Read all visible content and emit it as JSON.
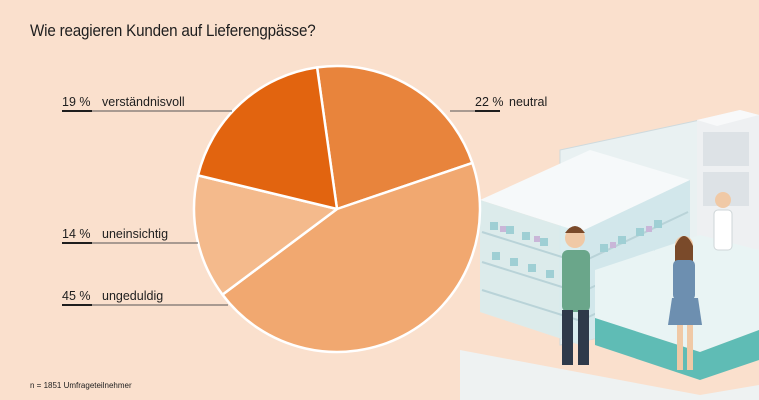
{
  "title": "Wie reagieren Kunden auf Lieferengpässe?",
  "footnote": "n = 1851 Umfrageteilnehmer",
  "colors": {
    "background": "#fae0cd",
    "line": "#555555"
  },
  "chart_data": {
    "type": "pie",
    "title": "Wie reagieren Kunden auf Lieferengpässe?",
    "slices": [
      {
        "label": "neutral",
        "value": 22,
        "value_label": "22 %",
        "color": "#e8843c"
      },
      {
        "label": "ungeduldig",
        "value": 45,
        "value_label": "45 %",
        "color": "#f1a870"
      },
      {
        "label": "uneinsichtig",
        "value": 14,
        "value_label": "14 %",
        "color": "#f4ba8c"
      },
      {
        "label": "verständnisvoll",
        "value": 19,
        "value_label": "19 %",
        "color": "#e2640f"
      }
    ]
  }
}
